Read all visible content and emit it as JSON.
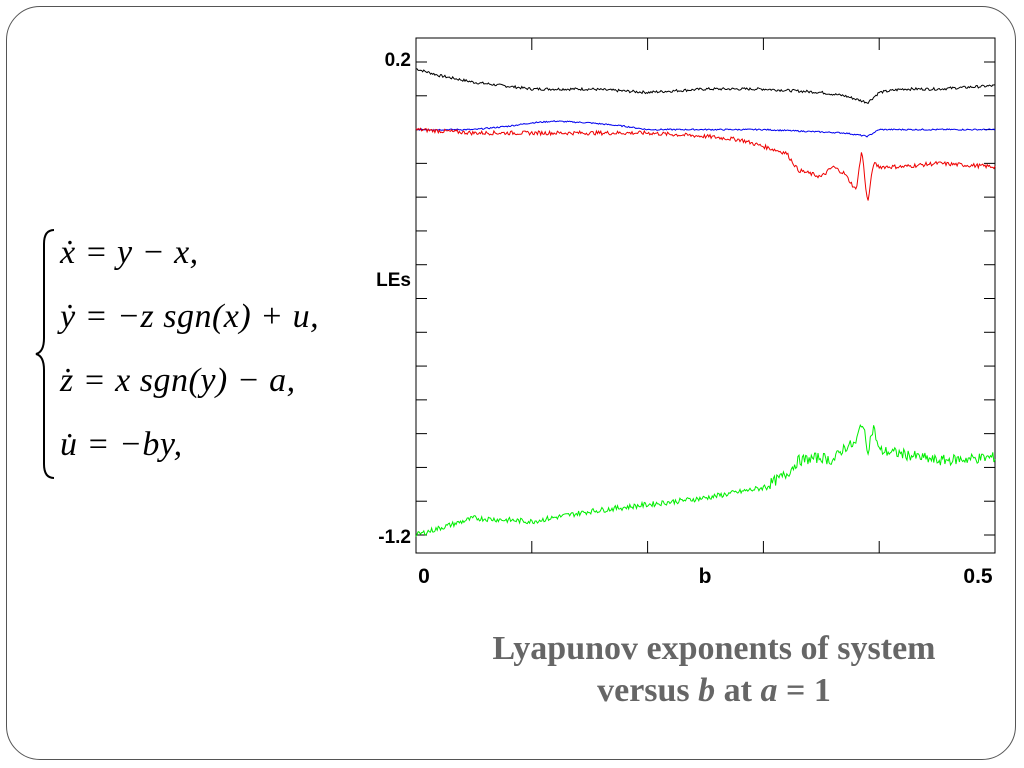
{
  "equations": {
    "line1": "ẋ = y − x,",
    "line2": "ẏ = −z sgn(x) + u,",
    "line3": "ż = x sgn(y) − a,",
    "line4": "u̇ = −by,"
  },
  "caption": {
    "line1": "Lyapunov exponents of system",
    "line2_prefix": "versus ",
    "line2_b": "b",
    "line2_mid": " at ",
    "line2_a": "a",
    "line2_suffix": " = 1"
  },
  "chart_data": {
    "type": "line",
    "title": "",
    "xlabel": "b",
    "ylabel": "LEs",
    "xlim": [
      0,
      0.5
    ],
    "ylim": [
      -1.2,
      0.2
    ],
    "x_tick_labels": [
      "0",
      "0.5"
    ],
    "y_tick_labels": [
      "0.2",
      "-1.2"
    ],
    "grid": false,
    "colors": {
      "black": "#000000",
      "blue": "#0000ee",
      "red": "#ee0000",
      "green": "#00ee00"
    },
    "series": [
      {
        "color": "black",
        "x": [
          0,
          0.02,
          0.05,
          0.1,
          0.15,
          0.2,
          0.25,
          0.3,
          0.35,
          0.37,
          0.39,
          0.4,
          0.42,
          0.45,
          0.5
        ],
        "y": [
          0.18,
          0.16,
          0.14,
          0.12,
          0.12,
          0.11,
          0.12,
          0.12,
          0.11,
          0.1,
          0.08,
          0.11,
          0.12,
          0.12,
          0.13
        ]
      },
      {
        "color": "blue",
        "x": [
          0,
          0.05,
          0.08,
          0.1,
          0.12,
          0.15,
          0.18,
          0.2,
          0.25,
          0.3,
          0.37,
          0.39,
          0.4,
          0.45,
          0.5
        ],
        "y": [
          0.0,
          0.0,
          0.01,
          0.02,
          0.025,
          0.02,
          0.01,
          0.0,
          0.0,
          0.0,
          -0.01,
          -0.02,
          0.0,
          0.0,
          0.0
        ]
      },
      {
        "color": "red",
        "x": [
          0,
          0.05,
          0.1,
          0.15,
          0.2,
          0.25,
          0.28,
          0.3,
          0.32,
          0.33,
          0.35,
          0.36,
          0.37,
          0.38,
          0.385,
          0.39,
          0.395,
          0.4,
          0.42,
          0.45,
          0.5
        ],
        "y": [
          0.0,
          -0.01,
          -0.01,
          -0.01,
          -0.01,
          -0.02,
          -0.03,
          -0.05,
          -0.07,
          -0.12,
          -0.14,
          -0.11,
          -0.13,
          -0.18,
          -0.06,
          -0.22,
          -0.1,
          -0.11,
          -0.11,
          -0.1,
          -0.11
        ]
      },
      {
        "color": "green",
        "x": [
          0,
          0.03,
          0.05,
          0.1,
          0.15,
          0.2,
          0.25,
          0.3,
          0.32,
          0.33,
          0.35,
          0.36,
          0.37,
          0.38,
          0.385,
          0.39,
          0.395,
          0.4,
          0.42,
          0.45,
          0.5
        ],
        "y": [
          -1.2,
          -1.17,
          -1.15,
          -1.16,
          -1.13,
          -1.11,
          -1.09,
          -1.06,
          -1.02,
          -0.98,
          -0.97,
          -0.98,
          -0.94,
          -0.93,
          -0.86,
          -0.95,
          -0.88,
          -0.95,
          -0.96,
          -0.98,
          -0.97
        ]
      }
    ]
  }
}
